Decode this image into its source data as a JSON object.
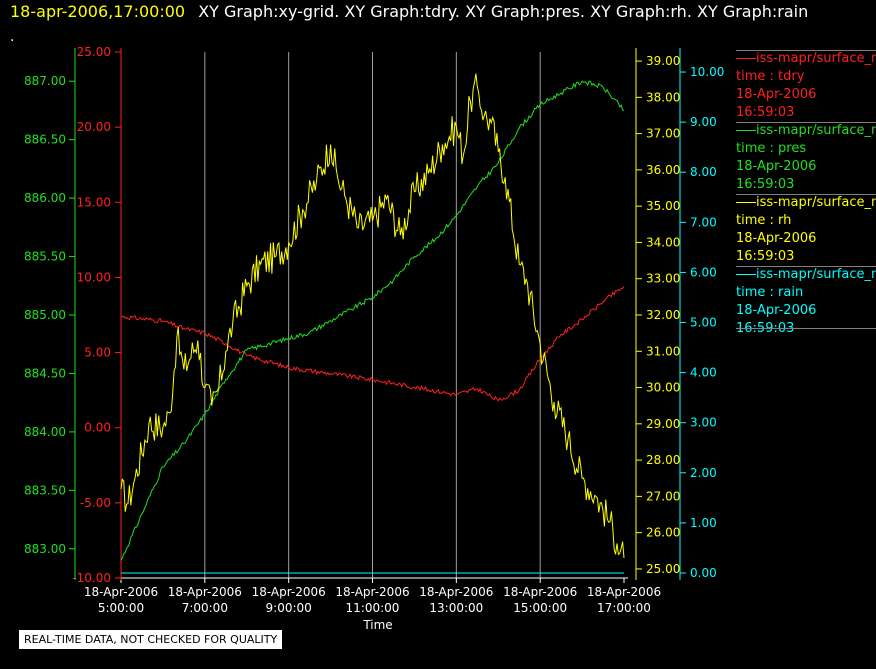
{
  "header": {
    "timestamp": "18-apr-2006,17:00:00",
    "graph_titles": "XY Graph:xy-grid.  XY Graph:tdry.  XY Graph:pres.  XY Graph:rh.  XY Graph:rain"
  },
  "dot": ".",
  "footer": {
    "notice": "REAL-TIME DATA, NOT CHECKED FOR QUALITY"
  },
  "colors": {
    "tdry": "#ff2020",
    "pres": "#20e020",
    "rh": "#ffff00",
    "rain": "#00ffff"
  },
  "chart_data": {
    "type": "line",
    "xlabel": "Time",
    "x_ticks": [
      "18-Apr-2006\n5:00:00",
      "18-Apr-2006\n7:00:00",
      "18-Apr-2006\n9:00:00",
      "18-Apr-2006\n11:00:00",
      "18-Apr-2006\n13:00:00",
      "18-Apr-2006\n15:00:00",
      "18-Apr-2006\n17:00:00"
    ],
    "x_range": [
      "18-Apr-2006 05:00:00",
      "18-Apr-2006 17:00:00"
    ],
    "grid": "vertical",
    "axes": {
      "tdry": {
        "range": [
          -10,
          25
        ],
        "ticks": [
          "-10.00",
          "-5.00",
          "0.00",
          "5.00",
          "10.00",
          "15.00",
          "20.00",
          "25.00"
        ]
      },
      "pres": {
        "range": [
          882.75,
          887.25
        ],
        "ticks": [
          "883.00",
          "883.50",
          "884.00",
          "884.50",
          "885.00",
          "885.50",
          "886.00",
          "886.50",
          "887.00"
        ]
      },
      "rh": {
        "range": [
          24.75,
          39.25
        ],
        "ticks": [
          "25.00",
          "26.00",
          "27.00",
          "28.00",
          "29.00",
          "30.00",
          "31.00",
          "32.00",
          "33.00",
          "34.00",
          "35.00",
          "36.00",
          "37.00",
          "38.00",
          "39.00"
        ]
      },
      "rain": {
        "range": [
          -0.1,
          10.4
        ],
        "ticks": [
          "0.00",
          "1.00",
          "2.00",
          "3.00",
          "4.00",
          "5.00",
          "6.00",
          "7.00",
          "8.00",
          "9.00",
          "10.00"
        ]
      }
    },
    "series": [
      {
        "key": "tdry",
        "x": [
          "05:00",
          "06:00",
          "06:30",
          "07:00",
          "07:30",
          "08:00",
          "09:00",
          "10:00",
          "11:00",
          "12:00",
          "13:00",
          "13:30",
          "14:00",
          "14:30",
          "15:00",
          "15:30",
          "16:00",
          "16:30",
          "17:00"
        ],
        "values": [
          7.4,
          7.1,
          6.6,
          6.3,
          5.6,
          4.8,
          4.0,
          3.6,
          3.2,
          2.7,
          2.2,
          2.6,
          1.8,
          2.5,
          4.6,
          6.2,
          7.2,
          8.4,
          9.4
        ]
      },
      {
        "key": "pres",
        "x": [
          "05:00",
          "05:30",
          "06:00",
          "06:30",
          "07:00",
          "07:30",
          "08:00",
          "08:30",
          "09:00",
          "09:30",
          "10:00",
          "10:30",
          "11:00",
          "11:30",
          "12:00",
          "12:30",
          "13:00",
          "13:30",
          "14:00",
          "14:30",
          "15:00",
          "15:30",
          "16:00",
          "16:30",
          "17:00"
        ],
        "values": [
          882.9,
          883.3,
          883.7,
          883.9,
          884.15,
          884.45,
          884.7,
          884.75,
          884.8,
          884.85,
          884.95,
          885.05,
          885.15,
          885.3,
          885.5,
          885.65,
          885.85,
          886.1,
          886.3,
          886.6,
          886.8,
          886.9,
          887.0,
          886.95,
          886.75
        ]
      },
      {
        "key": "rh",
        "x": [
          "05:00",
          "05:10",
          "05:20",
          "05:40",
          "06:00",
          "06:10",
          "06:20",
          "06:30",
          "06:50",
          "07:00",
          "07:10",
          "07:20",
          "07:30",
          "07:40",
          "08:00",
          "08:20",
          "08:40",
          "09:00",
          "09:20",
          "09:40",
          "10:00",
          "10:10",
          "10:20",
          "10:40",
          "11:00",
          "11:20",
          "11:40",
          "12:00",
          "12:20",
          "12:40",
          "13:00",
          "13:10",
          "13:20",
          "13:30",
          "13:40",
          "13:50",
          "14:00",
          "14:10",
          "14:30",
          "14:40",
          "15:00",
          "15:20",
          "15:40",
          "16:00",
          "16:20",
          "16:40",
          "16:50",
          "17:00"
        ],
        "values": [
          27.2,
          26.8,
          27.5,
          29.0,
          28.9,
          29.3,
          31.4,
          30.5,
          31.3,
          30.0,
          29.5,
          30.0,
          31.0,
          31.8,
          32.8,
          33.4,
          33.6,
          34.0,
          34.9,
          35.7,
          36.7,
          35.8,
          35.3,
          34.4,
          34.6,
          35.2,
          34.2,
          35.4,
          35.9,
          36.7,
          37.2,
          36.4,
          37.9,
          38.3,
          37.5,
          37.3,
          36.5,
          35.8,
          33.4,
          33.0,
          31.2,
          29.6,
          28.6,
          27.5,
          27.0,
          26.3,
          25.7,
          25.3
        ]
      },
      {
        "key": "rain",
        "x": [
          "05:00",
          "17:00"
        ],
        "values": [
          0.0,
          0.0
        ]
      }
    ],
    "legend_position": "right",
    "legend": [
      {
        "key": "tdry",
        "source": "iss-mapr/surface_met",
        "field": "time : tdry",
        "date": "18-Apr-2006",
        "time": "16:59:03"
      },
      {
        "key": "pres",
        "source": "iss-mapr/surface_met",
        "field": "time : pres",
        "date": "18-Apr-2006",
        "time": "16:59:03"
      },
      {
        "key": "rh",
        "source": "iss-mapr/surface_met",
        "field": "time : rh",
        "date": "18-Apr-2006",
        "time": "16:59:03"
      },
      {
        "key": "rain",
        "source": "iss-mapr/surface_met",
        "field": "time : rain",
        "date": "18-Apr-2006",
        "time": "16:59:03"
      }
    ]
  }
}
